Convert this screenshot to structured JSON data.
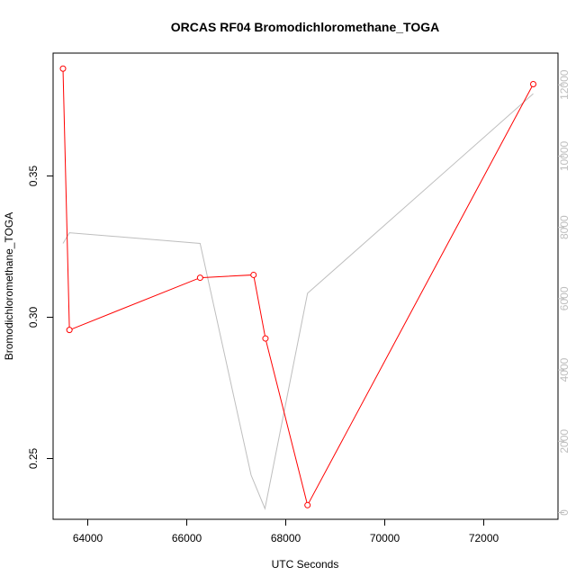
{
  "chart_data": {
    "type": "line",
    "title": "ORCAS RF04 Bromodichloromethane_TOGA",
    "xlabel": "UTC Seconds",
    "ylabel": "Bromodichloromethane_TOGA",
    "xlim": [
      63300,
      73500
    ],
    "ylim": [
      0.2285,
      0.3935
    ],
    "y2lim": [
      -190,
      12890
    ],
    "x_ticks": [
      64000,
      66000,
      68000,
      70000,
      72000
    ],
    "x_tick_labels": [
      "64000",
      "66000",
      "68000",
      "70000",
      "72000"
    ],
    "y_ticks": [
      0.25,
      0.3,
      0.35
    ],
    "y_tick_labels": [
      "0.25",
      "0.30",
      "0.35"
    ],
    "y2_ticks": [
      0,
      2000,
      4000,
      6000,
      8000,
      10000,
      12000
    ],
    "y2_tick_labels": [
      "0",
      "2000",
      "4000",
      "6000",
      "8000",
      "10000",
      "12000"
    ],
    "grid": false,
    "series": [
      {
        "axis": "left",
        "color": "#ff0000",
        "markers": true,
        "x": [
          63500,
          63630,
          66270,
          67350,
          67590,
          68440,
          73000
        ],
        "y": [
          0.388,
          0.2955,
          0.314,
          0.315,
          0.2925,
          0.2335,
          0.3825
        ]
      },
      {
        "axis": "right",
        "color": "#bebebe",
        "markers": false,
        "x": [
          63500,
          63630,
          66270,
          67300,
          67580,
          68440,
          73000
        ],
        "y": [
          7550,
          7850,
          7550,
          1050,
          110,
          6150,
          11750
        ]
      }
    ]
  }
}
